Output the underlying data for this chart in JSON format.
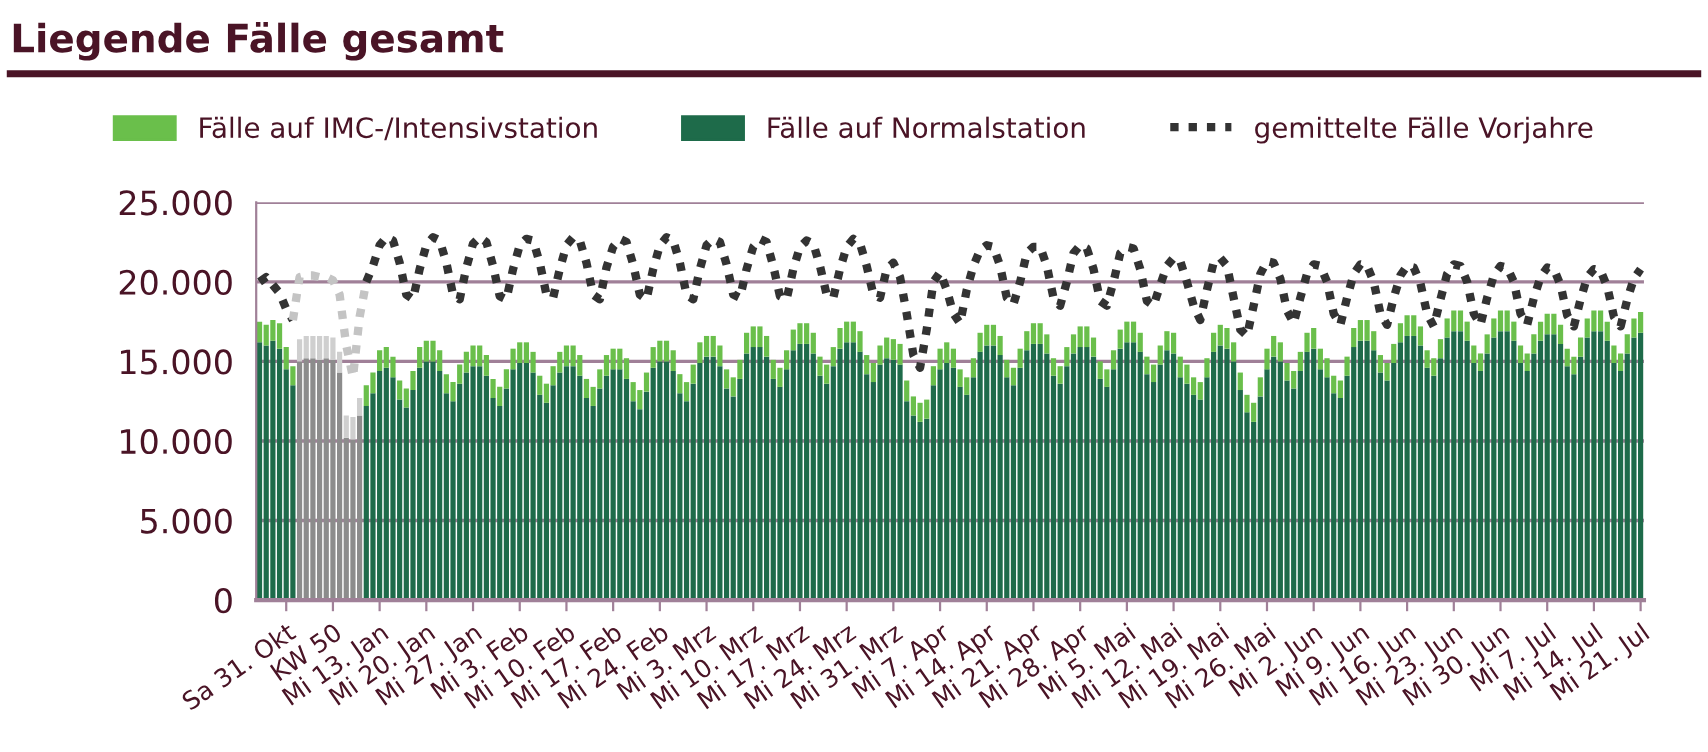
{
  "chart_data": {
    "type": "bar",
    "title": "Liegende Fälle gesamt",
    "stacked": true,
    "grid": "y",
    "legend": "top",
    "ylim": [
      0,
      25000
    ],
    "yticks": [
      0,
      {
        "value": 5000,
        "label": "5.000"
      },
      {
        "value": 10000,
        "label": "10.000"
      },
      {
        "value": 15000,
        "label": "15.000"
      },
      {
        "value": 20000,
        "label": "20.000"
      },
      {
        "value": 25000,
        "label": "25.000"
      }
    ],
    "categories": [
      null,
      null,
      null,
      null,
      "Sa 31. Okt",
      null,
      null,
      null,
      null,
      null,
      null,
      "KW 50",
      null,
      null,
      null,
      null,
      null,
      null,
      "Mi 13. Jan",
      null,
      null,
      null,
      null,
      null,
      null,
      "Mi 20. Jan",
      null,
      null,
      null,
      null,
      null,
      null,
      "Mi 27. Jan",
      null,
      null,
      null,
      null,
      null,
      null,
      "Mi 3. Feb",
      null,
      null,
      null,
      null,
      null,
      null,
      "Mi 10. Feb",
      null,
      null,
      null,
      null,
      null,
      null,
      "Mi 17. Feb",
      null,
      null,
      null,
      null,
      null,
      null,
      "Mi 24. Feb",
      null,
      null,
      null,
      null,
      null,
      null,
      "Mi 3. Mrz",
      null,
      null,
      null,
      null,
      null,
      null,
      "Mi 10. Mrz",
      null,
      null,
      null,
      null,
      null,
      null,
      "Mi 17. Mrz",
      null,
      null,
      null,
      null,
      null,
      null,
      "Mi 24. Mrz",
      null,
      null,
      null,
      null,
      null,
      null,
      "Mi 31. Mrz",
      null,
      null,
      null,
      null,
      null,
      null,
      "Mi 7. Apr",
      null,
      null,
      null,
      null,
      null,
      null,
      "Mi 14. Apr",
      null,
      null,
      null,
      null,
      null,
      null,
      "Mi 21. Apr",
      null,
      null,
      null,
      null,
      null,
      null,
      "Mi 28. Apr",
      null,
      null,
      null,
      null,
      null,
      null,
      "Mi 5. Mai",
      null,
      null,
      null,
      null,
      null,
      null,
      "Mi 12. Mai",
      null,
      null,
      null,
      null,
      null,
      null,
      "Mi 19. Mai",
      null,
      null,
      null,
      null,
      null,
      null,
      "Mi 26. Mai",
      null,
      null,
      null,
      null,
      null,
      null,
      "Mi 2. Jun",
      null,
      null,
      null,
      null,
      null,
      null,
      "Mi 9. Jun",
      null,
      null,
      null,
      null,
      null,
      null,
      "Mi 16. Jun",
      null,
      null,
      null,
      null,
      null,
      null,
      "Mi 23. Jun",
      null,
      null,
      null,
      null,
      null,
      null,
      "Mi 30. Jun",
      null,
      null,
      null,
      null,
      null,
      null,
      "Mi 7. Jul",
      null,
      null,
      null,
      null,
      null,
      null,
      "Mi 14. Jul",
      null,
      null,
      null,
      null,
      null,
      null,
      "Mi 21. Jul"
    ],
    "series": [
      {
        "name": "Fälle auf Normalstation",
        "color": "#1e6b4a",
        "values": [
          16200,
          16000,
          16300,
          15800,
          14500,
          13500,
          15000,
          15200,
          15200,
          15100,
          15200,
          15100,
          14300,
          10200,
          10100,
          11600,
          12200,
          13000,
          14400,
          14600,
          14000,
          12600,
          12100,
          13200,
          14600,
          15000,
          15000,
          14400,
          13000,
          12500,
          13600,
          14300,
          14700,
          14700,
          14100,
          12700,
          12200,
          13300,
          14500,
          14900,
          14900,
          14300,
          12900,
          12400,
          13500,
          14300,
          14700,
          14700,
          14100,
          12700,
          12200,
          13300,
          14100,
          14500,
          14500,
          13900,
          12500,
          12000,
          13100,
          14600,
          15000,
          15000,
          14400,
          13000,
          12500,
          13600,
          14900,
          15300,
          15300,
          14700,
          13300,
          12800,
          13900,
          15500,
          15900,
          15900,
          15300,
          13900,
          13400,
          14500,
          15700,
          16100,
          16100,
          15500,
          14100,
          13600,
          14700,
          15800,
          16200,
          16200,
          15600,
          14200,
          13700,
          14800,
          15200,
          15100,
          14800,
          12500,
          11600,
          11200,
          11400,
          13500,
          14500,
          14900,
          14600,
          13400,
          12900,
          14000,
          15600,
          16000,
          16000,
          15400,
          14000,
          13500,
          14600,
          15700,
          16100,
          16100,
          15500,
          14100,
          13600,
          14700,
          15500,
          15900,
          15900,
          15300,
          13900,
          13400,
          14500,
          15800,
          16200,
          16200,
          15600,
          14200,
          13700,
          14800,
          15700,
          15500,
          14000,
          13600,
          12900,
          12600,
          14000,
          15600,
          16000,
          15800,
          15000,
          13200,
          11800,
          11200,
          12800,
          14500,
          15300,
          15000,
          13800,
          13300,
          14400,
          15600,
          15800,
          14500,
          14000,
          13000,
          12700,
          14100,
          15900,
          16300,
          16300,
          15700,
          14300,
          13800,
          14900,
          16200,
          16600,
          16600,
          16000,
          14600,
          14100,
          15200,
          16500,
          16900,
          16900,
          16300,
          14900,
          14400,
          15500,
          16500,
          16900,
          16900,
          16300,
          14900,
          14400,
          15500,
          16300,
          16700,
          16700,
          16100,
          14700,
          14200,
          15300,
          16500,
          16900,
          16900,
          16300,
          14900,
          14400,
          15500,
          16500,
          16800
        ],
        "colors": [
          "#1e6b4a",
          "#1e6b4a",
          "#1e6b4a",
          "#1e6b4a",
          "#1e6b4a",
          "#1e6b4a",
          "#8c8c8c",
          "#8c8c8c",
          "#8c8c8c",
          "#8c8c8c",
          "#8c8c8c",
          "#8c8c8c",
          "#8c8c8c",
          "#8c8c8c",
          "#8c8c8c",
          "#8c8c8c",
          "#1e6b4a",
          "#1e6b4a",
          "#1e6b4a",
          "#1e6b4a",
          "#1e6b4a",
          "#1e6b4a",
          "#1e6b4a",
          "#1e6b4a",
          "#1e6b4a",
          "#1e6b4a",
          "#1e6b4a",
          "#1e6b4a",
          "#1e6b4a",
          "#1e6b4a",
          "#1e6b4a",
          "#1e6b4a",
          "#1e6b4a",
          "#1e6b4a",
          "#1e6b4a",
          "#1e6b4a",
          "#1e6b4a",
          "#1e6b4a",
          "#1e6b4a",
          "#1e6b4a",
          "#1e6b4a",
          "#1e6b4a",
          "#1e6b4a",
          "#1e6b4a",
          "#1e6b4a",
          "#1e6b4a",
          "#1e6b4a",
          "#1e6b4a",
          "#1e6b4a",
          "#1e6b4a",
          "#1e6b4a",
          "#1e6b4a",
          "#1e6b4a",
          "#1e6b4a",
          "#1e6b4a",
          "#1e6b4a",
          "#1e6b4a",
          "#1e6b4a",
          "#1e6b4a",
          "#1e6b4a",
          "#1e6b4a",
          "#1e6b4a",
          "#1e6b4a",
          "#1e6b4a",
          "#1e6b4a",
          "#1e6b4a",
          "#1e6b4a",
          "#1e6b4a",
          "#1e6b4a",
          "#1e6b4a",
          "#1e6b4a",
          "#1e6b4a",
          "#1e6b4a",
          "#1e6b4a",
          "#1e6b4a",
          "#1e6b4a",
          "#1e6b4a",
          "#1e6b4a",
          "#1e6b4a",
          "#1e6b4a",
          "#1e6b4a",
          "#1e6b4a",
          "#1e6b4a",
          "#1e6b4a",
          "#1e6b4a",
          "#1e6b4a",
          "#1e6b4a",
          "#1e6b4a",
          "#1e6b4a",
          "#1e6b4a",
          "#1e6b4a",
          "#1e6b4a",
          "#1e6b4a",
          "#1e6b4a",
          "#1e6b4a",
          "#1e6b4a",
          "#1e6b4a",
          "#1e6b4a",
          "#1e6b4a",
          "#1e6b4a",
          "#1e6b4a",
          "#1e6b4a",
          "#1e6b4a",
          "#1e6b4a",
          "#1e6b4a",
          "#1e6b4a",
          "#1e6b4a",
          "#1e6b4a",
          "#1e6b4a",
          "#1e6b4a",
          "#1e6b4a",
          "#1e6b4a",
          "#1e6b4a",
          "#1e6b4a",
          "#1e6b4a",
          "#1e6b4a",
          "#1e6b4a",
          "#1e6b4a",
          "#1e6b4a",
          "#1e6b4a",
          "#1e6b4a",
          "#1e6b4a",
          "#1e6b4a",
          "#1e6b4a",
          "#1e6b4a",
          "#1e6b4a",
          "#1e6b4a",
          "#1e6b4a",
          "#1e6b4a",
          "#1e6b4a",
          "#1e6b4a",
          "#1e6b4a",
          "#1e6b4a",
          "#1e6b4a",
          "#1e6b4a",
          "#1e6b4a",
          "#1e6b4a",
          "#1e6b4a",
          "#1e6b4a",
          "#1e6b4a",
          "#1e6b4a",
          "#1e6b4a",
          "#1e6b4a",
          "#1e6b4a",
          "#1e6b4a",
          "#1e6b4a",
          "#1e6b4a",
          "#1e6b4a",
          "#1e6b4a",
          "#1e6b4a",
          "#1e6b4a",
          "#1e6b4a",
          "#1e6b4a",
          "#1e6b4a",
          "#1e6b4a",
          "#1e6b4a",
          "#1e6b4a",
          "#1e6b4a",
          "#1e6b4a",
          "#1e6b4a",
          "#1e6b4a",
          "#1e6b4a",
          "#1e6b4a",
          "#1e6b4a",
          "#1e6b4a",
          "#1e6b4a",
          "#1e6b4a",
          "#1e6b4a",
          "#1e6b4a",
          "#1e6b4a",
          "#1e6b4a",
          "#1e6b4a",
          "#1e6b4a",
          "#1e6b4a",
          "#1e6b4a",
          "#1e6b4a",
          "#1e6b4a",
          "#1e6b4a",
          "#1e6b4a",
          "#1e6b4a",
          "#1e6b4a",
          "#1e6b4a",
          "#1e6b4a",
          "#1e6b4a",
          "#1e6b4a",
          "#1e6b4a",
          "#1e6b4a",
          "#1e6b4a",
          "#1e6b4a",
          "#1e6b4a",
          "#1e6b4a",
          "#1e6b4a",
          "#1e6b4a",
          "#1e6b4a",
          "#1e6b4a",
          "#1e6b4a",
          "#1e6b4a",
          "#1e6b4a",
          "#1e6b4a",
          "#1e6b4a",
          "#1e6b4a",
          "#1e6b4a",
          "#1e6b4a",
          "#1e6b4a",
          "#1e6b4a",
          "#1e6b4a",
          "#1e6b4a",
          "#1e6b4a"
        ]
      },
      {
        "name": "Fälle auf IMC-/Intensivstation",
        "color": "#6abf4b",
        "values": [
          1300,
          1300,
          1300,
          1600,
          1400,
          1200,
          1400,
          1400,
          1400,
          1500,
          1400,
          1400,
          1300,
          1400,
          1400,
          1100,
          1300,
          1300,
          1300,
          1300,
          1300,
          1200,
          1200,
          1200,
          1300,
          1300,
          1300,
          1300,
          1200,
          1200,
          1200,
          1300,
          1300,
          1300,
          1300,
          1200,
          1200,
          1200,
          1300,
          1300,
          1300,
          1300,
          1200,
          1200,
          1200,
          1300,
          1300,
          1300,
          1300,
          1200,
          1200,
          1200,
          1300,
          1300,
          1300,
          1300,
          1200,
          1200,
          1200,
          1300,
          1300,
          1300,
          1300,
          1200,
          1200,
          1200,
          1300,
          1300,
          1300,
          1300,
          1200,
          1200,
          1200,
          1300,
          1300,
          1300,
          1300,
          1200,
          1200,
          1200,
          1300,
          1300,
          1300,
          1300,
          1200,
          1200,
          1200,
          1300,
          1300,
          1300,
          1300,
          1200,
          1200,
          1200,
          1300,
          1300,
          1300,
          1300,
          1200,
          1200,
          1200,
          1200,
          1300,
          1300,
          1200,
          1100,
          1100,
          1200,
          1200,
          1300,
          1300,
          1200,
          1100,
          1100,
          1200,
          1200,
          1300,
          1300,
          1200,
          1100,
          1100,
          1200,
          1200,
          1300,
          1300,
          1200,
          1100,
          1100,
          1200,
          1200,
          1300,
          1300,
          1200,
          1100,
          1100,
          1200,
          1200,
          1300,
          1300,
          1200,
          1100,
          1100,
          1200,
          1200,
          1300,
          1300,
          1200,
          1100,
          1100,
          1200,
          1200,
          1300,
          1300,
          1200,
          1100,
          1100,
          1200,
          1200,
          1300,
          1300,
          1200,
          1100,
          1100,
          1200,
          1200,
          1300,
          1300,
          1200,
          1100,
          1100,
          1200,
          1200,
          1300,
          1300,
          1200,
          1100,
          1100,
          1200,
          1200,
          1300,
          1300,
          1200,
          1100,
          1100,
          1200,
          1200,
          1300,
          1300,
          1200,
          1100,
          1100,
          1200,
          1200,
          1300,
          1300,
          1200,
          1100,
          1100,
          1200,
          1200,
          1300,
          1300,
          1200,
          1100,
          1100,
          1200,
          1200,
          1300
        ],
        "colors": [
          "#6abf4b",
          "#6abf4b",
          "#6abf4b",
          "#6abf4b",
          "#6abf4b",
          "#6abf4b",
          "#cfcfcf",
          "#cfcfcf",
          "#cfcfcf",
          "#cfcfcf",
          "#cfcfcf",
          "#cfcfcf",
          "#cfcfcf",
          "#cfcfcf",
          "#cfcfcf",
          "#cfcfcf",
          "#6abf4b",
          "#6abf4b",
          "#6abf4b",
          "#6abf4b",
          "#6abf4b",
          "#6abf4b",
          "#6abf4b",
          "#6abf4b",
          "#6abf4b",
          "#6abf4b",
          "#6abf4b",
          "#6abf4b",
          "#6abf4b",
          "#6abf4b",
          "#6abf4b",
          "#6abf4b",
          "#6abf4b",
          "#6abf4b",
          "#6abf4b",
          "#6abf4b",
          "#6abf4b",
          "#6abf4b",
          "#6abf4b",
          "#6abf4b",
          "#6abf4b",
          "#6abf4b",
          "#6abf4b",
          "#6abf4b",
          "#6abf4b",
          "#6abf4b",
          "#6abf4b",
          "#6abf4b",
          "#6abf4b",
          "#6abf4b",
          "#6abf4b",
          "#6abf4b",
          "#6abf4b",
          "#6abf4b",
          "#6abf4b",
          "#6abf4b",
          "#6abf4b",
          "#6abf4b",
          "#6abf4b",
          "#6abf4b",
          "#6abf4b",
          "#6abf4b",
          "#6abf4b",
          "#6abf4b",
          "#6abf4b",
          "#6abf4b",
          "#6abf4b",
          "#6abf4b",
          "#6abf4b",
          "#6abf4b",
          "#6abf4b",
          "#6abf4b",
          "#6abf4b",
          "#6abf4b",
          "#6abf4b",
          "#6abf4b",
          "#6abf4b",
          "#6abf4b",
          "#6abf4b",
          "#6abf4b",
          "#6abf4b",
          "#6abf4b",
          "#6abf4b",
          "#6abf4b",
          "#6abf4b",
          "#6abf4b",
          "#6abf4b",
          "#6abf4b",
          "#6abf4b",
          "#6abf4b",
          "#6abf4b",
          "#6abf4b",
          "#6abf4b",
          "#6abf4b",
          "#6abf4b",
          "#6abf4b",
          "#6abf4b",
          "#6abf4b",
          "#6abf4b",
          "#6abf4b",
          "#6abf4b",
          "#6abf4b",
          "#6abf4b",
          "#6abf4b",
          "#6abf4b",
          "#6abf4b",
          "#6abf4b",
          "#6abf4b",
          "#6abf4b",
          "#6abf4b",
          "#6abf4b",
          "#6abf4b",
          "#6abf4b",
          "#6abf4b",
          "#6abf4b",
          "#6abf4b",
          "#6abf4b",
          "#6abf4b",
          "#6abf4b",
          "#6abf4b",
          "#6abf4b",
          "#6abf4b",
          "#6abf4b",
          "#6abf4b",
          "#6abf4b",
          "#6abf4b",
          "#6abf4b",
          "#6abf4b",
          "#6abf4b",
          "#6abf4b",
          "#6abf4b",
          "#6abf4b",
          "#6abf4b",
          "#6abf4b",
          "#6abf4b",
          "#6abf4b",
          "#6abf4b",
          "#6abf4b",
          "#6abf4b",
          "#6abf4b",
          "#6abf4b",
          "#6abf4b",
          "#6abf4b",
          "#6abf4b",
          "#6abf4b",
          "#6abf4b",
          "#6abf4b",
          "#6abf4b",
          "#6abf4b",
          "#6abf4b",
          "#6abf4b",
          "#6abf4b",
          "#6abf4b",
          "#6abf4b",
          "#6abf4b",
          "#6abf4b",
          "#6abf4b",
          "#6abf4b",
          "#6abf4b",
          "#6abf4b",
          "#6abf4b",
          "#6abf4b",
          "#6abf4b",
          "#6abf4b",
          "#6abf4b",
          "#6abf4b",
          "#6abf4b",
          "#6abf4b",
          "#6abf4b",
          "#6abf4b",
          "#6abf4b",
          "#6abf4b",
          "#6abf4b",
          "#6abf4b",
          "#6abf4b",
          "#6abf4b",
          "#6abf4b",
          "#6abf4b",
          "#6abf4b",
          "#6abf4b",
          "#6abf4b",
          "#6abf4b",
          "#6abf4b",
          "#6abf4b",
          "#6abf4b",
          "#6abf4b",
          "#6abf4b",
          "#6abf4b",
          "#6abf4b",
          "#6abf4b",
          "#6abf4b",
          "#6abf4b",
          "#6abf4b",
          "#6abf4b",
          "#6abf4b",
          "#6abf4b",
          "#6abf4b",
          "#6abf4b",
          "#6abf4b",
          "#6abf4b",
          "#6abf4b",
          "#6abf4b",
          "#6abf4b",
          "#6abf4b",
          "#6abf4b",
          "#6abf4b",
          "#6abf4b",
          "#6abf4b"
        ]
      },
      {
        "name": "gemittelte Fälle Vorjahre",
        "type": "line",
        "line_style": "dotted",
        "color": "#333333",
        "values": [
          20000,
          20300,
          19800,
          19300,
          18300,
          17600,
          null,
          null,
          null,
          null,
          null,
          null,
          null,
          null,
          null,
          null,
          20000,
          21000,
          22300,
          22800,
          22600,
          21200,
          19200,
          18900,
          20800,
          22300,
          22800,
          22600,
          21200,
          19200,
          18900,
          20900,
          22400,
          22800,
          22500,
          21000,
          19100,
          18900,
          20800,
          22300,
          22700,
          22600,
          21200,
          19200,
          19000,
          20800,
          22300,
          22800,
          22600,
          21200,
          19200,
          18900,
          20900,
          22200,
          22700,
          22500,
          21100,
          19200,
          18900,
          20800,
          22300,
          22800,
          22600,
          21200,
          19200,
          18900,
          20800,
          22300,
          22700,
          22500,
          21100,
          19200,
          19000,
          20800,
          22200,
          22700,
          22500,
          21000,
          19100,
          18900,
          20800,
          22200,
          22600,
          22400,
          21000,
          19200,
          19000,
          20800,
          22200,
          22700,
          22400,
          21000,
          19200,
          19000,
          20800,
          21200,
          20300,
          18000,
          15400,
          14600,
          17000,
          20000,
          20600,
          19500,
          18000,
          17400,
          19500,
          21000,
          22000,
          22300,
          22200,
          21000,
          19000,
          18600,
          20000,
          21800,
          22200,
          22200,
          21000,
          19000,
          18500,
          20000,
          21800,
          22300,
          22100,
          20800,
          18800,
          18500,
          20000,
          21800,
          22200,
          22100,
          20800,
          18800,
          18500,
          19800,
          21000,
          21500,
          21300,
          20000,
          18500,
          17600,
          19500,
          21200,
          21500,
          21000,
          19000,
          17000,
          16600,
          18500,
          20500,
          21300,
          21200,
          20200,
          18200,
          17400,
          19000,
          20500,
          21100,
          21000,
          20000,
          18000,
          17300,
          19000,
          20500,
          21100,
          21000,
          20000,
          18000,
          17300,
          19000,
          20400,
          21000,
          20900,
          19900,
          18000,
          17200,
          18900,
          20500,
          21100,
          21000,
          20000,
          18000,
          17300,
          19000,
          20400,
          21000,
          20900,
          20000,
          18000,
          17300,
          19000,
          20300,
          20900,
          20800,
          19800,
          17900,
          17200,
          18900,
          20300,
          20800,
          20700,
          19700,
          17800,
          17200,
          18900,
          20200,
          20800
        ]
      },
      {
        "type": "line",
        "line_style": "dotted",
        "color": "#c4c4c4",
        "values": [
          null,
          null,
          null,
          null,
          null,
          17600,
          20300,
          20400,
          20400,
          20300,
          20300,
          20100,
          19200,
          16000,
          14000,
          17800,
          20000,
          null,
          null,
          null,
          null,
          null,
          null,
          null,
          null,
          null,
          null,
          null,
          null,
          null,
          null,
          null,
          null,
          null,
          null,
          null,
          null,
          null,
          null,
          null,
          null,
          null,
          null,
          null,
          null,
          null,
          null,
          null,
          null,
          null,
          null,
          null,
          null,
          null,
          null,
          null,
          null,
          null,
          null,
          null,
          null,
          null,
          null,
          null,
          null,
          null,
          null,
          null,
          null,
          null,
          null,
          null,
          null,
          null,
          null,
          null,
          null,
          null,
          null,
          null,
          null,
          null,
          null,
          null,
          null,
          null,
          null,
          null,
          null,
          null,
          null,
          null,
          null,
          null,
          null,
          null,
          null,
          null,
          null,
          null,
          null,
          null,
          null,
          null,
          null,
          null,
          null,
          null,
          null,
          null,
          null,
          null,
          null,
          null,
          null,
          null,
          null,
          null,
          null,
          null,
          null,
          null,
          null,
          null,
          null,
          null,
          null,
          null,
          null,
          null,
          null,
          null,
          null,
          null,
          null,
          null,
          null,
          null,
          null,
          null,
          null,
          null,
          null,
          null,
          null,
          null,
          null,
          null,
          null,
          null,
          null,
          null,
          null,
          null,
          null,
          null,
          null,
          null,
          null,
          null,
          null,
          null,
          null,
          null,
          null,
          null,
          null,
          null,
          null,
          null,
          null,
          null,
          null,
          null,
          null,
          null,
          null,
          null,
          null,
          null,
          null,
          null,
          null,
          null,
          null,
          null,
          null,
          null,
          null,
          null,
          null,
          null,
          null,
          null,
          null,
          null,
          null,
          null,
          null,
          null,
          null,
          null,
          null,
          null,
          null,
          null,
          null,
          null
        ]
      }
    ]
  }
}
